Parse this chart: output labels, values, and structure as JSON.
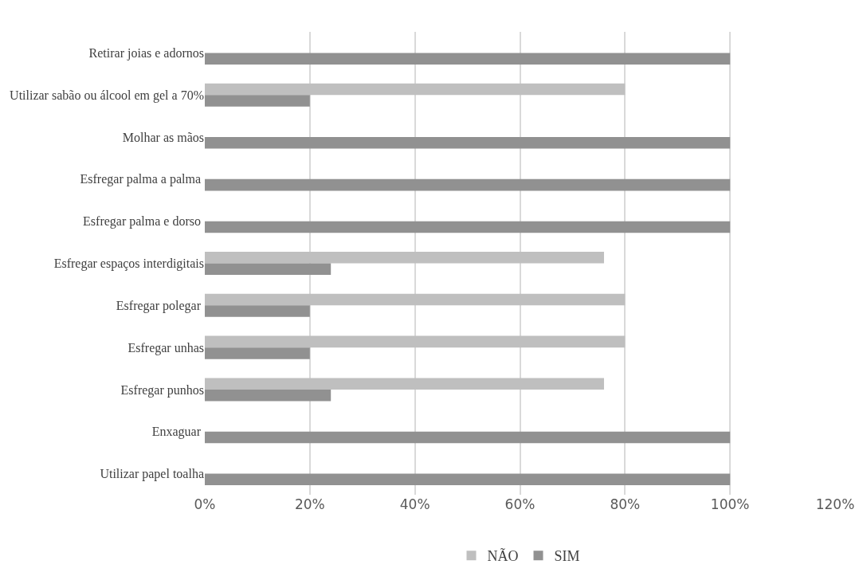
{
  "chart_data": {
    "type": "bar",
    "orientation": "horizontal",
    "categories": [
      "Retirar joias e adornos",
      "Utilizar sabão ou álcool em gel a 70%",
      "Molhar as mãos",
      "Esfregar palma a palma ",
      "Esfregar palma e dorso ",
      "Esfregar espaços interdigitais",
      "Esfregar polegar ",
      "Esfregar unhas",
      "Esfregar punhos",
      "Enxaguar ",
      "Utilizar papel toalha"
    ],
    "series": [
      {
        "name": "NÃO",
        "color": "#bfbfbf",
        "values": [
          0,
          80,
          0,
          0,
          0,
          76,
          80,
          80,
          76,
          0,
          0
        ]
      },
      {
        "name": "SIM",
        "color": "#919191",
        "values": [
          100,
          20,
          100,
          100,
          100,
          24,
          20,
          20,
          24,
          100,
          100
        ]
      }
    ],
    "xlim": [
      0,
      120
    ],
    "xticks": [
      {
        "value": 0,
        "label": "0%"
      },
      {
        "value": 20,
        "label": "20%"
      },
      {
        "value": 40,
        "label": "40%"
      },
      {
        "value": 60,
        "label": "60%"
      },
      {
        "value": 80,
        "label": "80%"
      },
      {
        "value": 100,
        "label": "100%"
      },
      {
        "value": 120,
        "label": "120%"
      }
    ],
    "grid": "x",
    "legend": "bottom"
  }
}
